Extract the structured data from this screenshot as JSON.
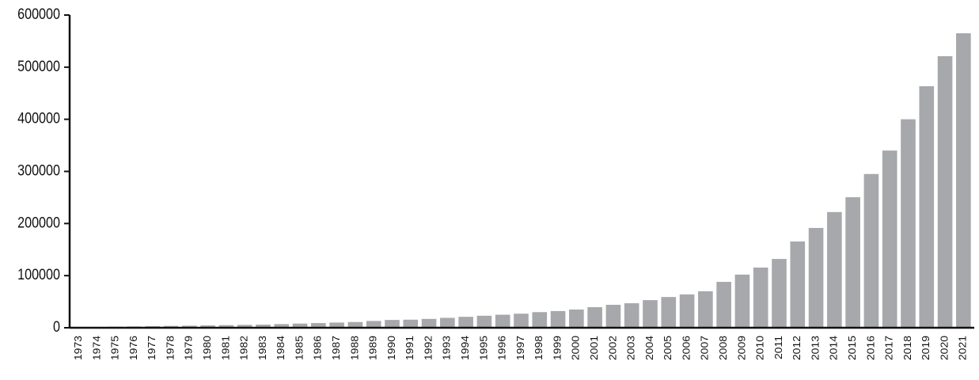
{
  "chart_data": {
    "type": "bar",
    "categories": [
      "1973",
      "1974",
      "1975",
      "1976",
      "1977",
      "1978",
      "1979",
      "1980",
      "1981",
      "1982",
      "1983",
      "1984",
      "1985",
      "1986",
      "1987",
      "1988",
      "1989",
      "1990",
      "1991",
      "1992",
      "1993",
      "1994",
      "1995",
      "1996",
      "1997",
      "1998",
      "1999",
      "2000",
      "2001",
      "2002",
      "2003",
      "2004",
      "2005",
      "2006",
      "2007",
      "2008",
      "2009",
      "2010",
      "2011",
      "2012",
      "2013",
      "2014",
      "2015",
      "2016",
      "2017",
      "2018",
      "2019",
      "2020",
      "2021"
    ],
    "values": [
      1000,
      1500,
      2000,
      2500,
      3000,
      3500,
      4000,
      4500,
      5000,
      5500,
      6000,
      7000,
      8000,
      9000,
      10000,
      11000,
      13000,
      15000,
      15500,
      17000,
      19000,
      21000,
      23000,
      25000,
      27000,
      30000,
      32000,
      35000,
      39500,
      44000,
      47000,
      53000,
      59000,
      64000,
      70000,
      88000,
      102000,
      115500,
      132000,
      165500,
      191500,
      222000,
      250500,
      295000,
      340000,
      400000,
      463500,
      521000,
      565000
    ],
    "color": "#a7a8ab",
    "ylim": [
      0,
      600000
    ],
    "yticks": [
      0,
      100000,
      200000,
      300000,
      400000,
      500000,
      600000
    ],
    "grid": false
  }
}
